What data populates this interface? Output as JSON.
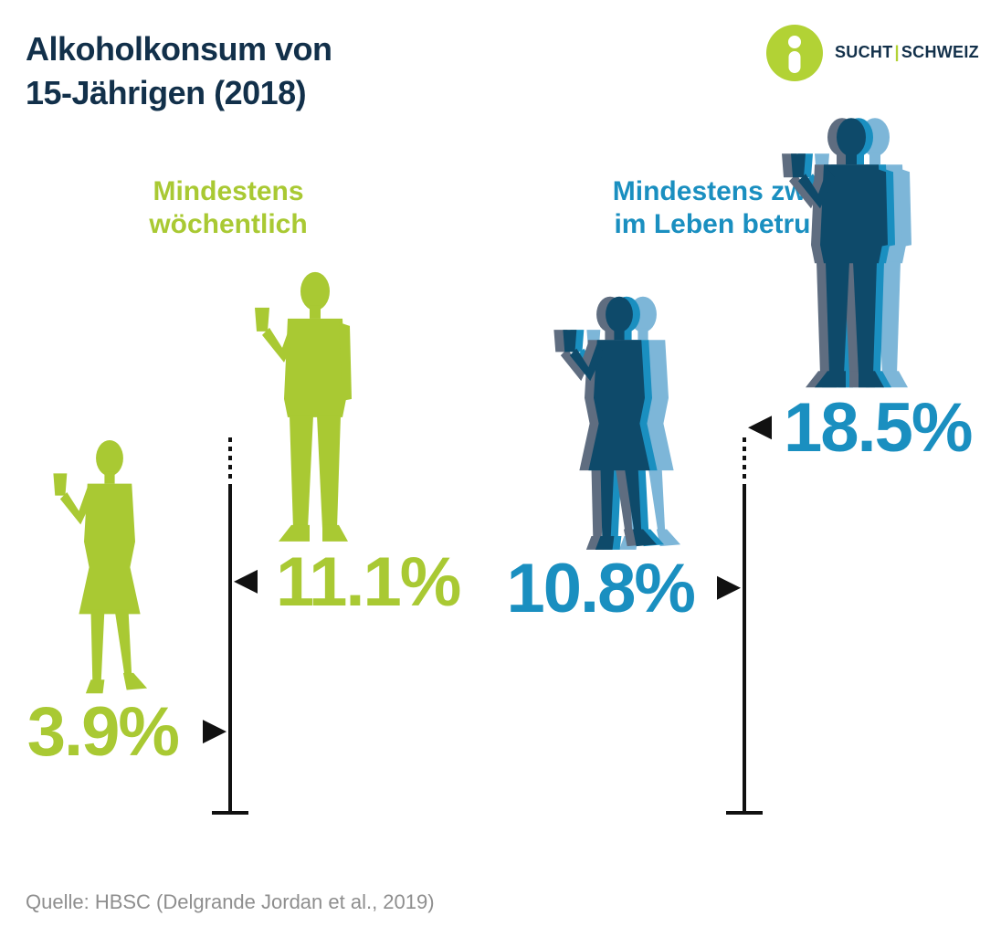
{
  "title": {
    "line1": "Alkoholkonsum von",
    "line2": "15-Jährigen (2018)"
  },
  "logo": {
    "left": "SUCHT",
    "separator": "|",
    "right": "SCHWEIZ",
    "colors": {
      "mark": "#b2d235",
      "text": "#12304a"
    }
  },
  "source": "Quelle: HBSC (Delgrande Jordan et al., 2019)",
  "colors": {
    "green": "#a9c933",
    "blue": "#1a8fc0",
    "navy": "#12304a",
    "dark_figure": "#0e4a6a",
    "axis": "#111111"
  },
  "chart_data": [
    {
      "type": "bar",
      "title": "Mindestens wöchentlich",
      "title_lines": [
        "Mindestens",
        "wöchentlich"
      ],
      "categories": [
        "girl-figure",
        "boy-figure"
      ],
      "values": [
        3.9,
        11.1
      ],
      "value_labels": [
        "3.9%",
        "11.1%"
      ],
      "unit": "%",
      "color": "#a9c933"
    },
    {
      "type": "bar",
      "title": "Mindestens zweimal im Leben betrunken",
      "title_lines": [
        "Mindestens zweimal",
        "im Leben betrunken"
      ],
      "categories": [
        "girl-figure",
        "boy-figure"
      ],
      "values": [
        10.8,
        18.5
      ],
      "value_labels": [
        "10.8%",
        "18.5%"
      ],
      "unit": "%",
      "color": "#1a8fc0"
    }
  ]
}
